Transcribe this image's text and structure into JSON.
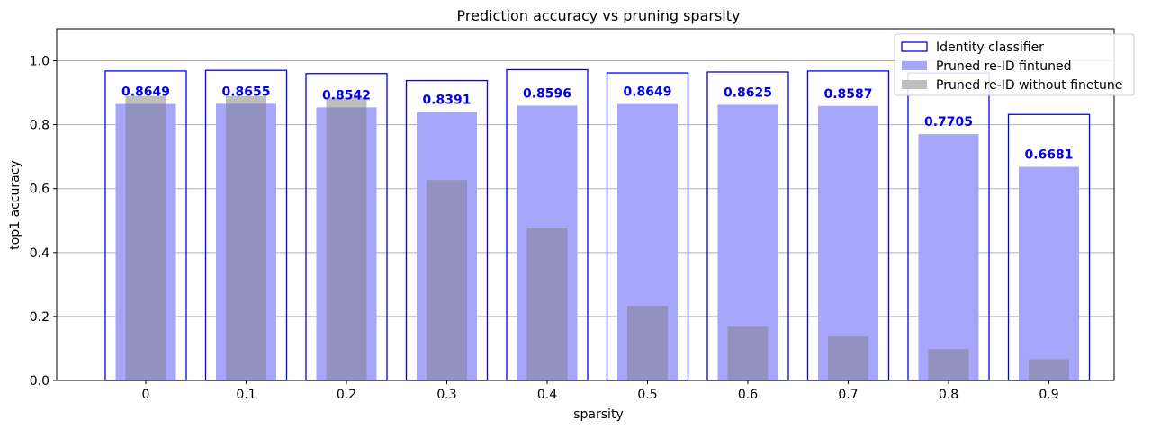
{
  "chart_data": {
    "type": "bar",
    "title": "Prediction accuracy vs pruning sparsity",
    "xlabel": "sparsity",
    "ylabel": "top1 accuracy",
    "categories": [
      "0",
      "0.1",
      "0.2",
      "0.3",
      "0.4",
      "0.5",
      "0.6",
      "0.7",
      "0.8",
      "0.9"
    ],
    "ylim": [
      0,
      1.1
    ],
    "yticks": [
      "0.0",
      "0.2",
      "0.4",
      "0.6",
      "0.8",
      "1.0"
    ],
    "grid": "horizontal",
    "legend_position": "top-right",
    "series": [
      {
        "name": "Identity classifier",
        "style": "outline",
        "color": "#0000ff",
        "values": [
          0.968,
          0.97,
          0.96,
          0.938,
          0.972,
          0.962,
          0.965,
          0.968,
          0.962,
          0.832
        ]
      },
      {
        "name": "Pruned re-ID fintuned",
        "style": "fill",
        "color": "#a6a6fa",
        "values": [
          0.8649,
          0.8655,
          0.8542,
          0.8391,
          0.8596,
          0.8649,
          0.8625,
          0.8587,
          0.7705,
          0.6681
        ],
        "data_labels": [
          "0.8649",
          "0.8655",
          "0.8542",
          "0.8391",
          "0.8596",
          "0.8649",
          "0.8625",
          "0.8587",
          "0.7705",
          "0.6681"
        ]
      },
      {
        "name": "Pruned re-ID without finetune",
        "style": "fill",
        "color": "#bebebe",
        "values": [
          0.89,
          0.89,
          0.885,
          0.627,
          0.476,
          0.234,
          0.168,
          0.138,
          0.098,
          0.066
        ]
      }
    ],
    "data_label_color": "#0000ee",
    "overlap_color": "#9292c0"
  }
}
